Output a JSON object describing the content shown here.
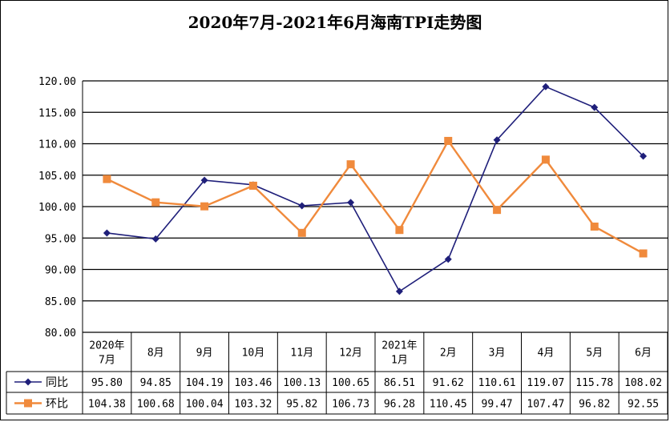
{
  "chart_data": {
    "type": "line",
    "title": "2020年7月-2021年6月海南TPI走势图",
    "categories": [
      [
        "2020年",
        "7月"
      ],
      [
        "8月"
      ],
      [
        "9月"
      ],
      [
        "10月"
      ],
      [
        "11月"
      ],
      [
        "12月"
      ],
      [
        "2021年",
        "1月"
      ],
      [
        "2月"
      ],
      [
        "3月"
      ],
      [
        "4月"
      ],
      [
        "5月"
      ],
      [
        "6月"
      ]
    ],
    "ylim": [
      80,
      120
    ],
    "yticks": [
      "80.00",
      "85.00",
      "90.00",
      "95.00",
      "100.00",
      "105.00",
      "110.00",
      "115.00",
      "120.00"
    ],
    "grid": true,
    "legend": "data-table",
    "series": [
      {
        "name": "同比",
        "color": "#1F1F7A",
        "marker": "diamond",
        "values": [
          95.8,
          94.85,
          104.19,
          103.46,
          100.13,
          100.65,
          86.51,
          91.62,
          110.61,
          119.07,
          115.78,
          108.02
        ],
        "labels": [
          "95.80",
          "94.85",
          "104.19",
          "103.46",
          "100.13",
          "100.65",
          "86.51",
          "91.62",
          "110.61",
          "119.07",
          "115.78",
          "108.02"
        ]
      },
      {
        "name": "环比",
        "color": "#F08A3C",
        "marker": "square",
        "values": [
          104.38,
          100.68,
          100.04,
          103.32,
          95.82,
          106.73,
          96.28,
          110.45,
          99.47,
          107.47,
          96.82,
          92.55
        ],
        "labels": [
          "104.38",
          "100.68",
          "100.04",
          "103.32",
          "95.82",
          "106.73",
          "96.28",
          "110.45",
          "99.47",
          "107.47",
          "96.82",
          "92.55"
        ]
      }
    ]
  }
}
